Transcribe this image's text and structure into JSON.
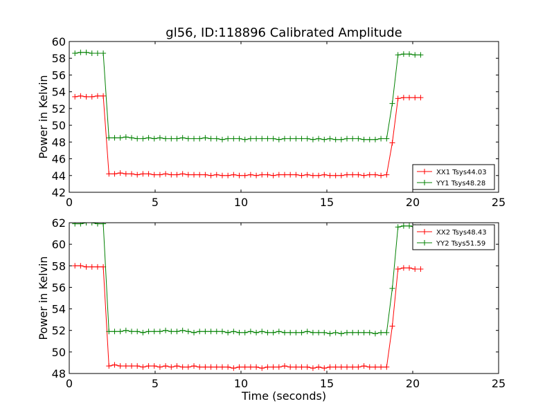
{
  "title": "gl56, ID:118896 Calibrated Amplitude",
  "colors": {
    "xx": "#ff0000",
    "yy": "#008000",
    "axis": "#000000",
    "background": "#ffffff"
  },
  "chart_data": [
    {
      "type": "line",
      "title": "gl56, ID:118896 Calibrated Amplitude",
      "xlabel": "",
      "ylabel": "Power in Kelvin",
      "xlim": [
        0,
        25
      ],
      "ylim": [
        42,
        60
      ],
      "xticks": [
        "0",
        "5",
        "10",
        "15",
        "20",
        "25"
      ],
      "yticks": [
        "42",
        "44",
        "46",
        "48",
        "50",
        "52",
        "54",
        "56",
        "58",
        "60"
      ],
      "grid": false,
      "legend_position": "lower-right",
      "x": [
        0.33,
        0.66,
        0.99,
        1.32,
        1.65,
        1.98,
        2.31,
        2.64,
        2.97,
        3.3,
        3.63,
        3.96,
        4.29,
        4.62,
        4.95,
        5.28,
        5.61,
        5.94,
        6.27,
        6.6,
        6.93,
        7.26,
        7.59,
        7.92,
        8.25,
        8.58,
        8.91,
        9.24,
        9.57,
        9.9,
        10.23,
        10.56,
        10.89,
        11.22,
        11.55,
        11.88,
        12.21,
        12.54,
        12.87,
        13.2,
        13.53,
        13.86,
        14.19,
        14.52,
        14.85,
        15.18,
        15.51,
        15.84,
        16.17,
        16.5,
        16.83,
        17.16,
        17.49,
        17.82,
        18.15,
        18.48,
        18.81,
        19.14,
        19.47,
        19.8,
        20.13,
        20.46
      ],
      "series": [
        {
          "name": "XX1 Tsys44.03",
          "color": "#ff0000",
          "values": [
            53.4,
            53.5,
            53.4,
            53.4,
            53.5,
            53.5,
            44.2,
            44.2,
            44.3,
            44.2,
            44.2,
            44.1,
            44.2,
            44.2,
            44.1,
            44.1,
            44.2,
            44.1,
            44.1,
            44.2,
            44.1,
            44.1,
            44.1,
            44.1,
            44.0,
            44.1,
            44.0,
            44.0,
            44.1,
            44.0,
            44.0,
            44.1,
            44.0,
            44.1,
            44.1,
            44.0,
            44.1,
            44.1,
            44.1,
            44.1,
            44.0,
            44.1,
            44.0,
            44.0,
            44.1,
            44.0,
            44.0,
            44.0,
            44.1,
            44.1,
            44.1,
            44.0,
            44.1,
            44.1,
            44.0,
            44.1,
            47.9,
            53.2,
            53.3,
            53.3,
            53.3,
            53.3
          ]
        },
        {
          "name": "YY1 Tsys48.28",
          "color": "#008000",
          "values": [
            58.6,
            58.7,
            58.7,
            58.6,
            58.6,
            58.6,
            48.5,
            48.5,
            48.5,
            48.6,
            48.5,
            48.4,
            48.4,
            48.5,
            48.4,
            48.5,
            48.4,
            48.4,
            48.4,
            48.5,
            48.4,
            48.4,
            48.4,
            48.5,
            48.4,
            48.4,
            48.3,
            48.4,
            48.4,
            48.4,
            48.3,
            48.4,
            48.4,
            48.4,
            48.4,
            48.4,
            48.3,
            48.4,
            48.4,
            48.4,
            48.4,
            48.4,
            48.3,
            48.4,
            48.3,
            48.4,
            48.3,
            48.3,
            48.4,
            48.4,
            48.4,
            48.3,
            48.3,
            48.3,
            48.4,
            48.4,
            52.6,
            58.4,
            58.5,
            58.5,
            58.4,
            58.4
          ]
        }
      ]
    },
    {
      "type": "line",
      "title": "",
      "xlabel": "Time (seconds)",
      "ylabel": "Power in Kelvin",
      "xlim": [
        0,
        25
      ],
      "ylim": [
        48,
        62
      ],
      "xticks": [
        "0",
        "5",
        "10",
        "15",
        "20",
        "25"
      ],
      "yticks": [
        "48",
        "50",
        "52",
        "54",
        "56",
        "58",
        "60",
        "62"
      ],
      "grid": false,
      "legend_position": "top-right",
      "x": [
        0.33,
        0.66,
        0.99,
        1.32,
        1.65,
        1.98,
        2.31,
        2.64,
        2.97,
        3.3,
        3.63,
        3.96,
        4.29,
        4.62,
        4.95,
        5.28,
        5.61,
        5.94,
        6.27,
        6.6,
        6.93,
        7.26,
        7.59,
        7.92,
        8.25,
        8.58,
        8.91,
        9.24,
        9.57,
        9.9,
        10.23,
        10.56,
        10.89,
        11.22,
        11.55,
        11.88,
        12.21,
        12.54,
        12.87,
        13.2,
        13.53,
        13.86,
        14.19,
        14.52,
        14.85,
        15.18,
        15.51,
        15.84,
        16.17,
        16.5,
        16.83,
        17.16,
        17.49,
        17.82,
        18.15,
        18.48,
        18.81,
        19.14,
        19.47,
        19.8,
        20.13,
        20.46
      ],
      "series": [
        {
          "name": "XX2 Tsys48.43",
          "color": "#ff0000",
          "values": [
            58.0,
            58.0,
            57.9,
            57.9,
            57.9,
            57.9,
            48.7,
            48.8,
            48.7,
            48.7,
            48.7,
            48.7,
            48.6,
            48.7,
            48.7,
            48.6,
            48.7,
            48.6,
            48.7,
            48.6,
            48.6,
            48.7,
            48.6,
            48.6,
            48.6,
            48.6,
            48.6,
            48.6,
            48.5,
            48.6,
            48.6,
            48.6,
            48.6,
            48.5,
            48.6,
            48.6,
            48.6,
            48.7,
            48.6,
            48.6,
            48.6,
            48.6,
            48.5,
            48.6,
            48.5,
            48.6,
            48.6,
            48.6,
            48.6,
            48.6,
            48.6,
            48.7,
            48.6,
            48.6,
            48.6,
            48.6,
            52.4,
            57.7,
            57.8,
            57.8,
            57.7,
            57.7
          ]
        },
        {
          "name": "YY2 Tsys51.59",
          "color": "#008000",
          "values": [
            61.9,
            61.9,
            62.0,
            62.0,
            61.9,
            61.9,
            51.9,
            51.9,
            51.9,
            52.0,
            51.9,
            51.9,
            51.8,
            51.9,
            51.9,
            51.9,
            52.0,
            51.9,
            51.9,
            52.0,
            51.9,
            51.8,
            51.9,
            51.9,
            51.9,
            51.9,
            51.9,
            51.8,
            51.9,
            51.8,
            51.8,
            51.9,
            51.8,
            51.9,
            51.8,
            51.8,
            51.9,
            51.8,
            51.8,
            51.8,
            51.8,
            51.9,
            51.8,
            51.8,
            51.8,
            51.7,
            51.8,
            51.7,
            51.8,
            51.8,
            51.8,
            51.8,
            51.8,
            51.7,
            51.8,
            51.8,
            55.9,
            61.6,
            61.7,
            61.7,
            61.6,
            61.6
          ]
        }
      ]
    }
  ]
}
